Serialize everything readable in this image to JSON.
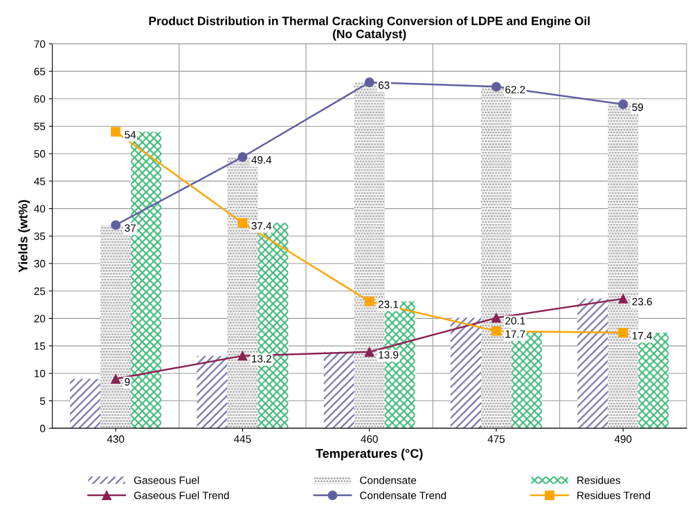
{
  "chart_data": {
    "type": "bar",
    "title": "Product Distribution in Thermal Cracking Conversion of LDPE and Engine Oil\n(No Catalyst)",
    "xlabel": "Temperatures (°C)",
    "ylabel": "Yields (wt%)",
    "categories": [
      "430",
      "445",
      "460",
      "475",
      "490"
    ],
    "series": [
      {
        "name": "Gaseous Fuel",
        "color": "#6b6ba8",
        "values": [
          9,
          13.2,
          13.9,
          20.1,
          23.6
        ]
      },
      {
        "name": "Condensate",
        "color": "#8c8c8c",
        "values": [
          37,
          49.4,
          63,
          62.2,
          59
        ]
      },
      {
        "name": "Residues",
        "color": "#3cb878",
        "values": [
          54,
          37.4,
          23.1,
          17.7,
          17.4
        ]
      },
      {
        "name": "Gaseous Fuel Trend",
        "type": "line",
        "color": "#8b2252",
        "marker": "triangle",
        "data_labels": true,
        "values": [
          9,
          13.2,
          13.9,
          20.1,
          23.6
        ]
      },
      {
        "name": "Condensate Trend",
        "type": "line",
        "color": "#5f5fa0",
        "marker": "circle",
        "data_labels": true,
        "values": [
          37,
          49.4,
          63,
          62.2,
          59
        ]
      },
      {
        "name": "Residues Trend",
        "type": "line",
        "color": "#ffa500",
        "marker": "square",
        "data_labels": true,
        "values": [
          54,
          37.4,
          23.1,
          17.7,
          17.4
        ]
      }
    ],
    "ylim": [
      0,
      70
    ],
    "yticks": [
      0,
      5,
      10,
      15,
      20,
      25,
      30,
      35,
      40,
      45,
      50,
      55,
      60,
      65,
      70
    ],
    "grid": "y",
    "legend": "bottom"
  }
}
